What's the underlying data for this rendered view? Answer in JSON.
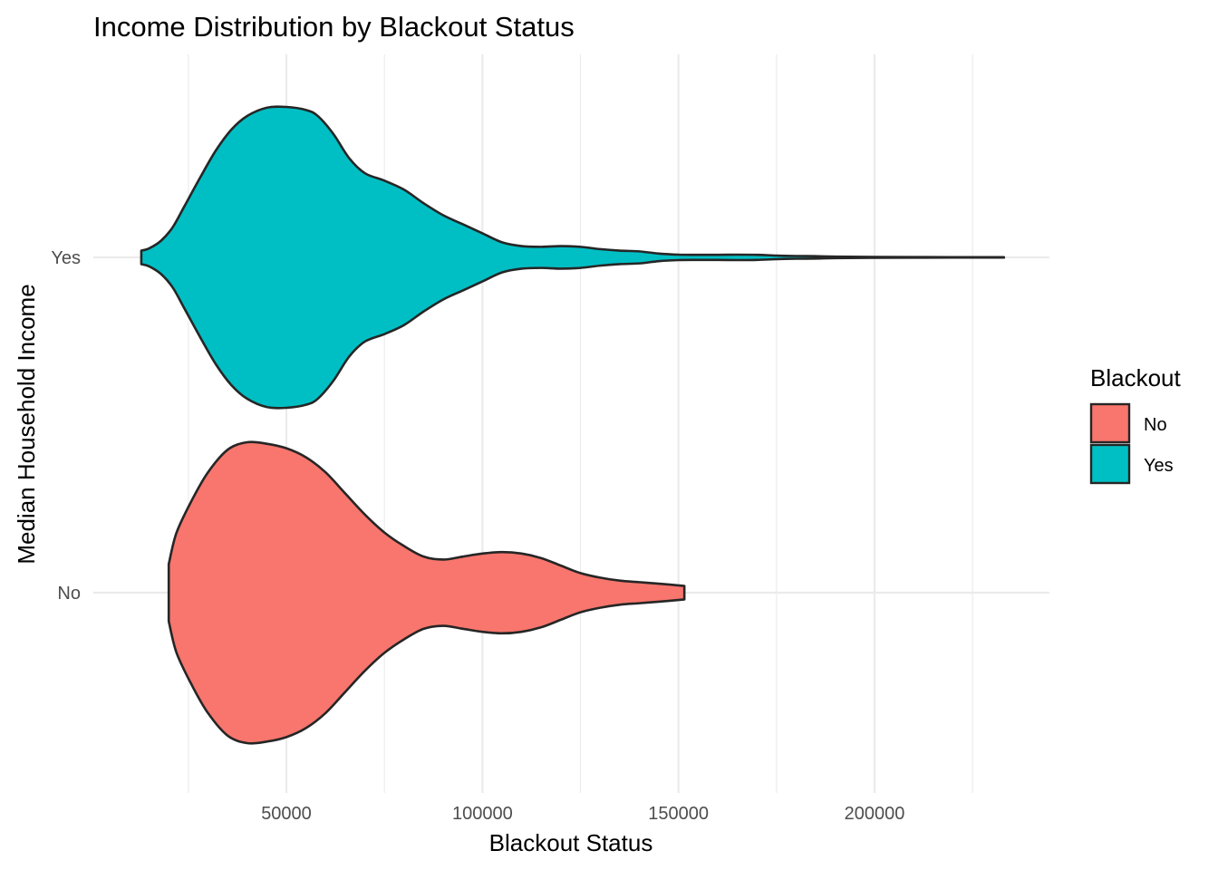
{
  "chart_data": {
    "type": "violin",
    "orientation": "horizontal",
    "title": "Income Distribution by Blackout Status",
    "xlabel": "Blackout Status",
    "ylabel": "Median Household Income",
    "xlim": [
      0,
      245000
    ],
    "x_ticks": [
      50000,
      100000,
      150000,
      200000
    ],
    "x_minor_ticks": [
      25000,
      75000,
      125000,
      175000,
      225000
    ],
    "categories": [
      "No",
      "Yes"
    ],
    "grid": true,
    "legend": {
      "title": "Blackout",
      "position": "right",
      "entries": [
        {
          "label": "No",
          "color": "#F8766D"
        },
        {
          "label": "Yes",
          "color": "#00BFC4"
        }
      ]
    },
    "series": [
      {
        "category": "No",
        "color": "#F8766D",
        "density": [
          [
            20000,
            0.19
          ],
          [
            22000,
            0.4
          ],
          [
            26000,
            0.62
          ],
          [
            30000,
            0.8
          ],
          [
            35000,
            0.95
          ],
          [
            40000,
            1.0
          ],
          [
            45000,
            0.99
          ],
          [
            50000,
            0.96
          ],
          [
            55000,
            0.9
          ],
          [
            60000,
            0.8
          ],
          [
            65000,
            0.66
          ],
          [
            70000,
            0.52
          ],
          [
            75000,
            0.4
          ],
          [
            80000,
            0.31
          ],
          [
            85000,
            0.24
          ],
          [
            90000,
            0.22
          ],
          [
            95000,
            0.24
          ],
          [
            100000,
            0.26
          ],
          [
            105000,
            0.27
          ],
          [
            110000,
            0.26
          ],
          [
            115000,
            0.23
          ],
          [
            120000,
            0.18
          ],
          [
            125000,
            0.13
          ],
          [
            130000,
            0.1
          ],
          [
            135000,
            0.08
          ],
          [
            140000,
            0.07
          ],
          [
            145000,
            0.06
          ],
          [
            151500,
            0.045
          ]
        ]
      },
      {
        "category": "Yes",
        "color": "#00BFC4",
        "density": [
          [
            13000,
            0.045
          ],
          [
            15000,
            0.06
          ],
          [
            18000,
            0.11
          ],
          [
            21000,
            0.2
          ],
          [
            24000,
            0.34
          ],
          [
            28000,
            0.53
          ],
          [
            32000,
            0.71
          ],
          [
            36000,
            0.85
          ],
          [
            40000,
            0.94
          ],
          [
            45000,
            0.995
          ],
          [
            50000,
            1.0
          ],
          [
            55000,
            0.98
          ],
          [
            58000,
            0.94
          ],
          [
            62000,
            0.82
          ],
          [
            66000,
            0.66
          ],
          [
            70000,
            0.56
          ],
          [
            75000,
            0.51
          ],
          [
            80000,
            0.45
          ],
          [
            85000,
            0.36
          ],
          [
            90000,
            0.28
          ],
          [
            95000,
            0.22
          ],
          [
            100000,
            0.16
          ],
          [
            105000,
            0.1
          ],
          [
            110000,
            0.075
          ],
          [
            115000,
            0.07
          ],
          [
            120000,
            0.075
          ],
          [
            125000,
            0.07
          ],
          [
            130000,
            0.055
          ],
          [
            135000,
            0.045
          ],
          [
            140000,
            0.04
          ],
          [
            145000,
            0.025
          ],
          [
            150000,
            0.018
          ],
          [
            155000,
            0.017
          ],
          [
            160000,
            0.017
          ],
          [
            165000,
            0.018
          ],
          [
            170000,
            0.017
          ],
          [
            175000,
            0.012
          ],
          [
            180000,
            0.009
          ],
          [
            185000,
            0.008
          ],
          [
            190000,
            0.005
          ],
          [
            200000,
            0.003
          ],
          [
            210000,
            0.002
          ],
          [
            220000,
            0.0015
          ],
          [
            233000,
            0.0015
          ]
        ]
      }
    ]
  }
}
